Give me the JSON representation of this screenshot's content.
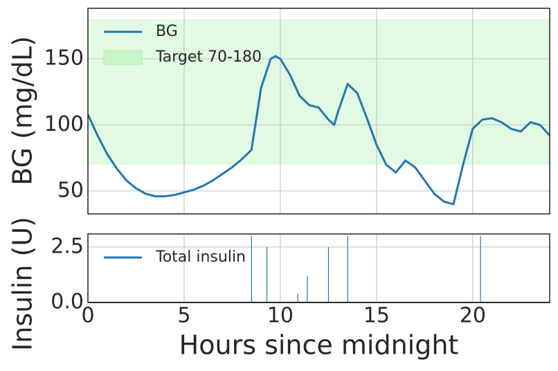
{
  "chart_data": [
    {
      "type": "line",
      "ylabel": "BG (mg/dL)",
      "x": [
        0,
        0.5,
        1,
        1.5,
        2,
        2.5,
        3,
        3.5,
        4,
        4.5,
        5,
        5.5,
        6,
        6.5,
        7,
        7.5,
        8,
        8.5,
        9,
        9.5,
        9.75,
        10,
        10.5,
        11,
        11.5,
        12,
        12.5,
        12.8,
        13,
        13.5,
        14,
        14.5,
        15,
        15.5,
        16,
        16.5,
        17,
        17.5,
        18,
        18.5,
        19,
        19.5,
        20,
        20.5,
        21,
        21.5,
        22,
        22.5,
        23,
        23.5,
        24
      ],
      "series": [
        {
          "name": "BG",
          "color": "#1f77b4",
          "values": [
            108,
            92,
            78,
            67,
            58,
            52,
            48,
            46,
            46,
            47,
            49,
            51,
            54,
            58,
            63,
            68,
            74,
            81,
            128,
            150,
            152,
            150,
            138,
            122,
            115,
            113,
            104,
            100,
            110,
            131,
            124,
            105,
            85,
            70,
            64,
            73,
            68,
            58,
            48,
            42,
            40,
            70,
            97,
            104,
            105,
            102,
            97,
            95,
            102,
            100,
            92
          ]
        }
      ],
      "band": {
        "name": "Target 70-180",
        "range": [
          70,
          180
        ],
        "color": "#c8f5c8"
      },
      "xlim": [
        0,
        24
      ],
      "ylim": [
        32.7,
        188.2
      ],
      "yticks": [
        50,
        100,
        150
      ],
      "grid": true,
      "legend": "upper-left"
    },
    {
      "type": "bar",
      "ylabel": "Insulin (U)",
      "xlabel": "Hours since midnight",
      "x": [
        8.5,
        9.3,
        10.9,
        11.4,
        12.5,
        13.5,
        20.4
      ],
      "series": [
        {
          "name": "Total insulin",
          "color": "#1f77b4",
          "values": [
            3.0,
            2.5,
            0.4,
            1.2,
            2.5,
            3.0,
            3.0
          ]
        }
      ],
      "xlim": [
        0,
        24
      ],
      "xticks": [
        0,
        5,
        10,
        15,
        20
      ],
      "ylim": [
        0,
        3.09
      ],
      "yticks": [
        {
          "value": 0,
          "label": "0.0"
        },
        2.5
      ],
      "grid": true,
      "legend": "upper-left"
    }
  ]
}
